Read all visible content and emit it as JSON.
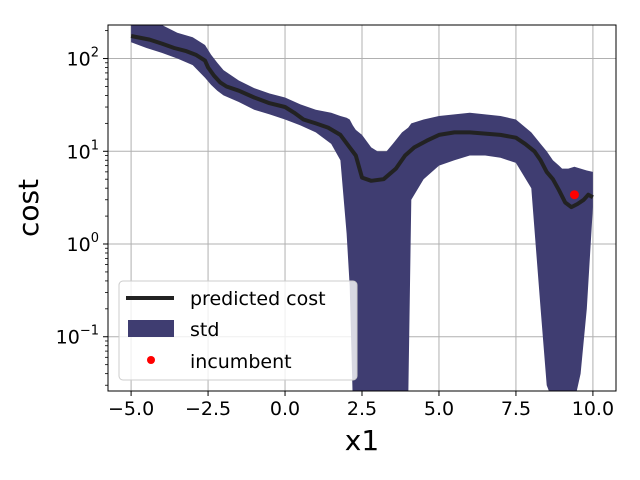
{
  "chart_data": {
    "type": "line",
    "title": "",
    "xlabel": "x1",
    "ylabel": "cost",
    "xlim": [
      -5.75,
      10.75
    ],
    "ylim": [
      0.026,
      230
    ],
    "yscale": "log",
    "grid": true,
    "legend_position": "lower-left",
    "x_ticks": [
      -5.0,
      -2.5,
      0.0,
      2.5,
      5.0,
      7.5,
      10.0
    ],
    "x_tick_labels": [
      "−5.0",
      "−2.5",
      "0.0",
      "2.5",
      "5.0",
      "7.5",
      "10.0"
    ],
    "y_ticks": [
      {
        "value": 0.1,
        "base": "10",
        "exp": "−1"
      },
      {
        "value": 1,
        "base": "10",
        "exp": "0"
      },
      {
        "value": 10,
        "base": "10",
        "exp": "1"
      },
      {
        "value": 100,
        "base": "10",
        "exp": "2"
      }
    ],
    "series": [
      {
        "name": "predicted cost",
        "kind": "line",
        "color": "#222222",
        "x": [
          -5.0,
          -4.4,
          -4.0,
          -3.6,
          -3.2,
          -2.9,
          -2.6,
          -2.5,
          -2.3,
          -2.1,
          -1.9,
          -1.5,
          -1.0,
          -0.5,
          0.0,
          0.3,
          0.6,
          1.0,
          1.4,
          1.8,
          2.1,
          2.3,
          2.5,
          2.8,
          3.2,
          3.6,
          3.9,
          4.2,
          4.6,
          5.0,
          5.5,
          6.0,
          6.5,
          7.0,
          7.5,
          7.8,
          8.1,
          8.3,
          8.5,
          8.7,
          8.9,
          9.1,
          9.3,
          9.5,
          9.7,
          9.85,
          10.0
        ],
        "values": [
          175,
          160,
          145,
          130,
          120,
          110,
          95,
          80,
          65,
          55,
          50,
          45,
          38,
          33,
          30,
          26,
          22,
          20,
          18,
          15,
          11,
          9,
          5.2,
          4.8,
          5.0,
          6.5,
          9,
          11,
          13,
          15,
          16,
          16,
          15.5,
          15,
          14,
          12,
          10,
          8,
          6,
          5,
          3.8,
          2.8,
          2.5,
          2.7,
          3.0,
          3.4,
          3.2
        ]
      },
      {
        "name": "std",
        "kind": "band",
        "color": "#3f3d71",
        "x": [
          -5.0,
          -4.5,
          -4.0,
          -3.5,
          -3.0,
          -2.6,
          -2.4,
          -2.2,
          -2.0,
          -1.5,
          -1.0,
          -0.5,
          0.0,
          0.5,
          1.0,
          1.5,
          1.8,
          2.0,
          2.1,
          2.2,
          2.3,
          2.5,
          2.8,
          3.0,
          3.3,
          3.5,
          3.8,
          4.0,
          4.1,
          4.5,
          5.0,
          5.5,
          6.0,
          6.5,
          7.0,
          7.5,
          8.0,
          8.3,
          8.5,
          8.7,
          8.9,
          9.0,
          9.2,
          9.4,
          9.6,
          9.8,
          10.0
        ],
        "lower": [
          150,
          130,
          115,
          100,
          85,
          62,
          52,
          45,
          40,
          34,
          28,
          25,
          22,
          19,
          16,
          12,
          8,
          1.3,
          0.35,
          0.02,
          0.02,
          0.02,
          0.02,
          0.02,
          0.02,
          0.02,
          0.02,
          0.02,
          3,
          5,
          7,
          8,
          9,
          9,
          8.5,
          7.5,
          4,
          0.2,
          0.03,
          0.02,
          0.02,
          0.02,
          0.02,
          0.02,
          0.04,
          0.2,
          2.5
        ],
        "upper": [
          230,
          230,
          230,
          190,
          170,
          140,
          110,
          90,
          75,
          58,
          48,
          42,
          38,
          32,
          28,
          26,
          24,
          23,
          22,
          19,
          17,
          15,
          11,
          10,
          10,
          12,
          16,
          18,
          20,
          22,
          24,
          25,
          26,
          25,
          24,
          22,
          16,
          12,
          10,
          8,
          7,
          6.5,
          6.5,
          6.8,
          6.5,
          6.2,
          6.0
        ]
      },
      {
        "name": "incumbent",
        "kind": "scatter",
        "color": "#ff0000",
        "x": [
          9.4
        ],
        "values": [
          3.4
        ]
      }
    ]
  }
}
